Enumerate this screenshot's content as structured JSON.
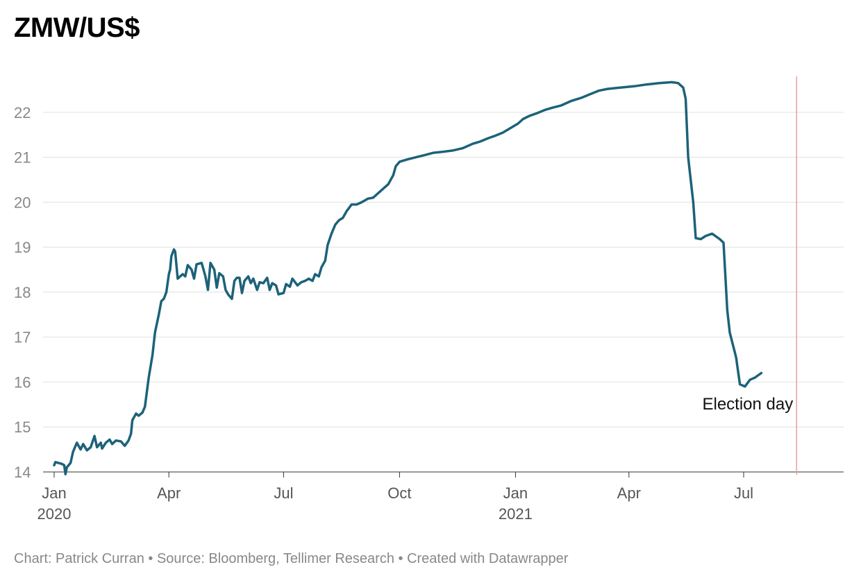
{
  "title": "ZMW/US$",
  "footer": "Chart: Patrick Curran • Source: Bloomberg, Tellimer Research • Created with Datawrapper",
  "colors": {
    "line": "#1c6279",
    "grid": "#e5e5e5",
    "annotation_line": "#e8a0a0"
  },
  "chart_data": {
    "type": "line",
    "title": "ZMW/US$",
    "xlabel": "",
    "ylabel": "",
    "ylim": [
      14,
      22.8
    ],
    "yticks": [
      14,
      15,
      16,
      17,
      18,
      19,
      20,
      21,
      22
    ],
    "xlim": [
      "2020-01-01",
      "2021-09-20"
    ],
    "xticks": [
      {
        "date": "2020-01-01",
        "label": "Jan",
        "sub": "2020"
      },
      {
        "date": "2020-04-01",
        "label": "Apr",
        "sub": ""
      },
      {
        "date": "2020-07-01",
        "label": "Jul",
        "sub": ""
      },
      {
        "date": "2020-10-01",
        "label": "Oct",
        "sub": ""
      },
      {
        "date": "2021-01-01",
        "label": "Jan",
        "sub": "2021"
      },
      {
        "date": "2021-04-01",
        "label": "Apr",
        "sub": ""
      },
      {
        "date": "2021-07-01",
        "label": "Jul",
        "sub": ""
      }
    ],
    "grid": true,
    "annotations": [
      {
        "date": "2021-08-12",
        "label": "Election day"
      }
    ],
    "series": [
      {
        "values": [
          [
            "2020-01-01",
            14.15
          ],
          [
            "2020-01-02",
            14.22
          ],
          [
            "2020-01-07",
            14.18
          ],
          [
            "2020-01-09",
            14.15
          ],
          [
            "2020-01-10",
            13.95
          ],
          [
            "2020-01-11",
            14.1
          ],
          [
            "2020-01-14",
            14.2
          ],
          [
            "2020-01-16",
            14.45
          ],
          [
            "2020-01-19",
            14.65
          ],
          [
            "2020-01-22",
            14.5
          ],
          [
            "2020-01-24",
            14.62
          ],
          [
            "2020-01-27",
            14.48
          ],
          [
            "2020-01-30",
            14.55
          ],
          [
            "2020-02-02",
            14.8
          ],
          [
            "2020-02-04",
            14.55
          ],
          [
            "2020-02-07",
            14.65
          ],
          [
            "2020-02-08",
            14.52
          ],
          [
            "2020-02-11",
            14.65
          ],
          [
            "2020-02-14",
            14.72
          ],
          [
            "2020-02-16",
            14.62
          ],
          [
            "2020-02-19",
            14.7
          ],
          [
            "2020-02-23",
            14.68
          ],
          [
            "2020-02-26",
            14.58
          ],
          [
            "2020-02-29",
            14.7
          ],
          [
            "2020-03-02",
            14.85
          ],
          [
            "2020-03-03",
            15.15
          ],
          [
            "2020-03-06",
            15.3
          ],
          [
            "2020-03-08",
            15.25
          ],
          [
            "2020-03-11",
            15.32
          ],
          [
            "2020-03-13",
            15.45
          ],
          [
            "2020-03-16",
            16.1
          ],
          [
            "2020-03-19",
            16.6
          ],
          [
            "2020-03-21",
            17.1
          ],
          [
            "2020-03-24",
            17.5
          ],
          [
            "2020-03-26",
            17.8
          ],
          [
            "2020-03-28",
            17.85
          ],
          [
            "2020-03-30",
            18.0
          ],
          [
            "2020-04-01",
            18.4
          ],
          [
            "2020-04-02",
            18.5
          ],
          [
            "2020-04-03",
            18.8
          ],
          [
            "2020-04-05",
            18.95
          ],
          [
            "2020-04-06",
            18.9
          ],
          [
            "2020-04-08",
            18.3
          ],
          [
            "2020-04-10",
            18.35
          ],
          [
            "2020-04-12",
            18.4
          ],
          [
            "2020-04-14",
            18.35
          ],
          [
            "2020-04-16",
            18.6
          ],
          [
            "2020-04-19",
            18.5
          ],
          [
            "2020-04-21",
            18.3
          ],
          [
            "2020-04-23",
            18.62
          ],
          [
            "2020-04-27",
            18.65
          ],
          [
            "2020-04-30",
            18.35
          ],
          [
            "2020-05-02",
            18.05
          ],
          [
            "2020-05-04",
            18.65
          ],
          [
            "2020-05-07",
            18.5
          ],
          [
            "2020-05-09",
            18.1
          ],
          [
            "2020-05-11",
            18.42
          ],
          [
            "2020-05-14",
            18.35
          ],
          [
            "2020-05-16",
            18.05
          ],
          [
            "2020-05-18",
            17.95
          ],
          [
            "2020-05-21",
            17.85
          ],
          [
            "2020-05-23",
            18.25
          ],
          [
            "2020-05-25",
            18.32
          ],
          [
            "2020-05-27",
            18.32
          ],
          [
            "2020-05-29",
            17.98
          ],
          [
            "2020-05-31",
            18.25
          ],
          [
            "2020-06-03",
            18.35
          ],
          [
            "2020-06-05",
            18.2
          ],
          [
            "2020-06-07",
            18.3
          ],
          [
            "2020-06-10",
            18.05
          ],
          [
            "2020-06-12",
            18.22
          ],
          [
            "2020-06-15",
            18.2
          ],
          [
            "2020-06-18",
            18.32
          ],
          [
            "2020-06-20",
            18.05
          ],
          [
            "2020-06-22",
            18.2
          ],
          [
            "2020-06-25",
            18.15
          ],
          [
            "2020-06-27",
            17.95
          ],
          [
            "2020-07-01",
            17.98
          ],
          [
            "2020-07-03",
            18.18
          ],
          [
            "2020-07-06",
            18.12
          ],
          [
            "2020-07-08",
            18.3
          ],
          [
            "2020-07-12",
            18.15
          ],
          [
            "2020-07-15",
            18.22
          ],
          [
            "2020-07-18",
            18.25
          ],
          [
            "2020-07-21",
            18.3
          ],
          [
            "2020-07-24",
            18.25
          ],
          [
            "2020-07-26",
            18.4
          ],
          [
            "2020-07-29",
            18.35
          ],
          [
            "2020-07-31",
            18.55
          ],
          [
            "2020-08-03",
            18.7
          ],
          [
            "2020-08-05",
            19.05
          ],
          [
            "2020-08-08",
            19.3
          ],
          [
            "2020-08-11",
            19.5
          ],
          [
            "2020-08-14",
            19.6
          ],
          [
            "2020-08-17",
            19.65
          ],
          [
            "2020-08-20",
            19.8
          ],
          [
            "2020-08-24",
            19.95
          ],
          [
            "2020-08-28",
            19.95
          ],
          [
            "2020-09-01",
            20.0
          ],
          [
            "2020-09-06",
            20.08
          ],
          [
            "2020-09-10",
            20.1
          ],
          [
            "2020-09-14",
            20.2
          ],
          [
            "2020-09-18",
            20.3
          ],
          [
            "2020-09-22",
            20.4
          ],
          [
            "2020-09-26",
            20.6
          ],
          [
            "2020-09-28",
            20.8
          ],
          [
            "2020-10-01",
            20.9
          ],
          [
            "2020-10-07",
            20.95
          ],
          [
            "2020-10-14",
            21.0
          ],
          [
            "2020-10-21",
            21.05
          ],
          [
            "2020-10-28",
            21.1
          ],
          [
            "2020-11-04",
            21.12
          ],
          [
            "2020-11-12",
            21.15
          ],
          [
            "2020-11-20",
            21.2
          ],
          [
            "2020-11-28",
            21.3
          ],
          [
            "2020-12-04",
            21.35
          ],
          [
            "2020-12-10",
            21.42
          ],
          [
            "2020-12-16",
            21.48
          ],
          [
            "2020-12-22",
            21.55
          ],
          [
            "2020-12-28",
            21.65
          ],
          [
            "2021-01-03",
            21.75
          ],
          [
            "2021-01-07",
            21.85
          ],
          [
            "2021-01-12",
            21.92
          ],
          [
            "2021-01-18",
            21.98
          ],
          [
            "2021-01-24",
            22.05
          ],
          [
            "2021-01-30",
            22.1
          ],
          [
            "2021-02-06",
            22.15
          ],
          [
            "2021-02-14",
            22.25
          ],
          [
            "2021-02-22",
            22.32
          ],
          [
            "2021-03-01",
            22.4
          ],
          [
            "2021-03-08",
            22.48
          ],
          [
            "2021-03-15",
            22.52
          ],
          [
            "2021-03-25",
            22.55
          ],
          [
            "2021-04-05",
            22.58
          ],
          [
            "2021-04-15",
            22.62
          ],
          [
            "2021-04-25",
            22.65
          ],
          [
            "2021-05-05",
            22.67
          ],
          [
            "2021-05-10",
            22.65
          ],
          [
            "2021-05-14",
            22.55
          ],
          [
            "2021-05-16",
            22.3
          ],
          [
            "2021-05-18",
            21.0
          ],
          [
            "2021-05-22",
            20.0
          ],
          [
            "2021-05-24",
            19.2
          ],
          [
            "2021-05-28",
            19.18
          ],
          [
            "2021-06-01",
            19.25
          ],
          [
            "2021-06-06",
            19.3
          ],
          [
            "2021-06-12",
            19.18
          ],
          [
            "2021-06-15",
            19.1
          ],
          [
            "2021-06-18",
            17.6
          ],
          [
            "2021-06-20",
            17.1
          ],
          [
            "2021-06-25",
            16.55
          ],
          [
            "2021-06-28",
            15.95
          ],
          [
            "2021-07-02",
            15.9
          ],
          [
            "2021-07-06",
            16.05
          ],
          [
            "2021-07-10",
            16.1
          ],
          [
            "2021-07-15",
            16.2
          ]
        ]
      }
    ]
  }
}
